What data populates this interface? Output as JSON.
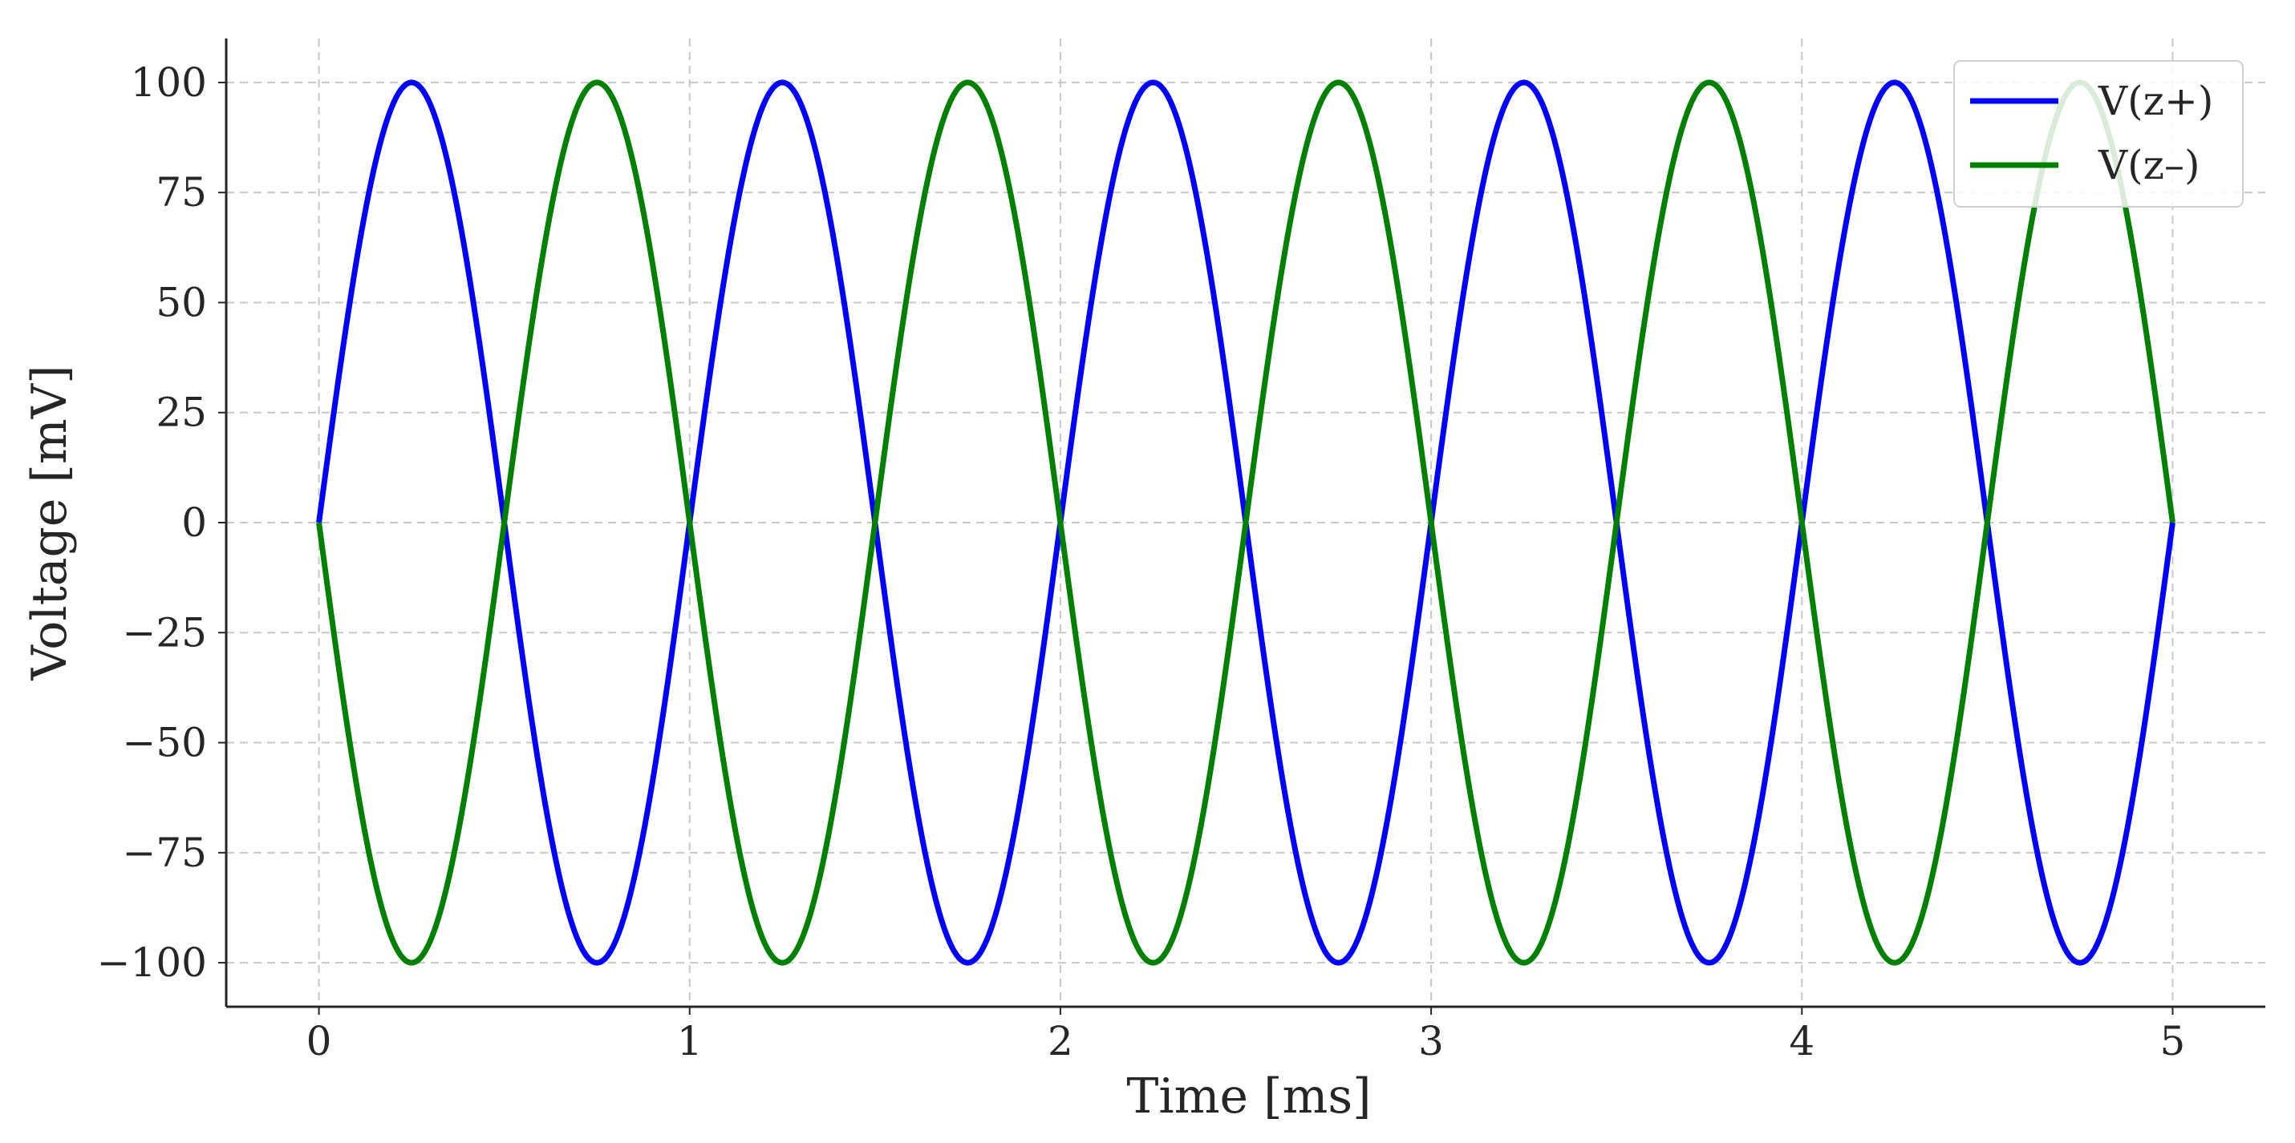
{
  "chart_data": {
    "type": "line",
    "title": "",
    "xlabel": "Time [ms]",
    "ylabel": "Voltage [mV]",
    "xlim": [
      -0.25,
      5.25
    ],
    "ylim": [
      -110,
      110
    ],
    "xticks": [
      0,
      1,
      2,
      3,
      4,
      5
    ],
    "xtick_labels": [
      "0",
      "1",
      "2",
      "3",
      "4",
      "5"
    ],
    "yticks": [
      100,
      75,
      50,
      25,
      0,
      -25,
      -50,
      -75,
      -100
    ],
    "ytick_labels": [
      "100",
      "75",
      "50",
      "25",
      "0",
      "−25",
      "−50",
      "−75",
      "−100"
    ],
    "grid": true,
    "legend_position": "top-right",
    "series": [
      {
        "name": "V(z+)",
        "color": "#0000ff",
        "x": [
          0,
          0.125,
          0.25,
          0.375,
          0.5,
          0.625,
          0.75,
          0.875,
          1.0,
          1.125,
          1.25,
          1.375,
          1.5,
          1.625,
          1.75,
          1.875,
          2.0,
          2.125,
          2.25,
          2.375,
          2.5,
          2.625,
          2.75,
          2.875,
          3.0,
          3.125,
          3.25,
          3.375,
          3.5,
          3.625,
          3.75,
          3.875,
          4.0,
          4.125,
          4.25,
          4.375,
          4.5,
          4.625,
          4.75,
          4.875,
          5.0
        ],
        "values": [
          0,
          70.7,
          100,
          70.7,
          0,
          -70.7,
          -100,
          -70.7,
          0,
          70.7,
          100,
          70.7,
          0,
          -70.7,
          -100,
          -70.7,
          0,
          70.7,
          100,
          70.7,
          0,
          -70.7,
          -100,
          -70.7,
          0,
          70.7,
          100,
          70.7,
          0,
          -70.7,
          -100,
          -70.7,
          0,
          70.7,
          100,
          70.7,
          0,
          -70.7,
          -100,
          -70.7,
          0
        ]
      },
      {
        "name": "V(z–)",
        "color": "#008000",
        "x": [
          0,
          0.125,
          0.25,
          0.375,
          0.5,
          0.625,
          0.75,
          0.875,
          1.0,
          1.125,
          1.25,
          1.375,
          1.5,
          1.625,
          1.75,
          1.875,
          2.0,
          2.125,
          2.25,
          2.375,
          2.5,
          2.625,
          2.75,
          2.875,
          3.0,
          3.125,
          3.25,
          3.375,
          3.5,
          3.625,
          3.75,
          3.875,
          4.0,
          4.125,
          4.25,
          4.375,
          4.5,
          4.625,
          4.75,
          4.875,
          5.0
        ],
        "values": [
          0,
          -70.7,
          -100,
          -70.7,
          0,
          70.7,
          100,
          70.7,
          0,
          -70.7,
          -100,
          -70.7,
          0,
          70.7,
          100,
          70.7,
          0,
          -70.7,
          -100,
          -70.7,
          0,
          70.7,
          100,
          70.7,
          0,
          -70.7,
          -100,
          -70.7,
          0,
          70.7,
          100,
          70.7,
          0,
          -70.7,
          -100,
          -70.7,
          0,
          70.7,
          100,
          70.7,
          0
        ]
      }
    ]
  }
}
